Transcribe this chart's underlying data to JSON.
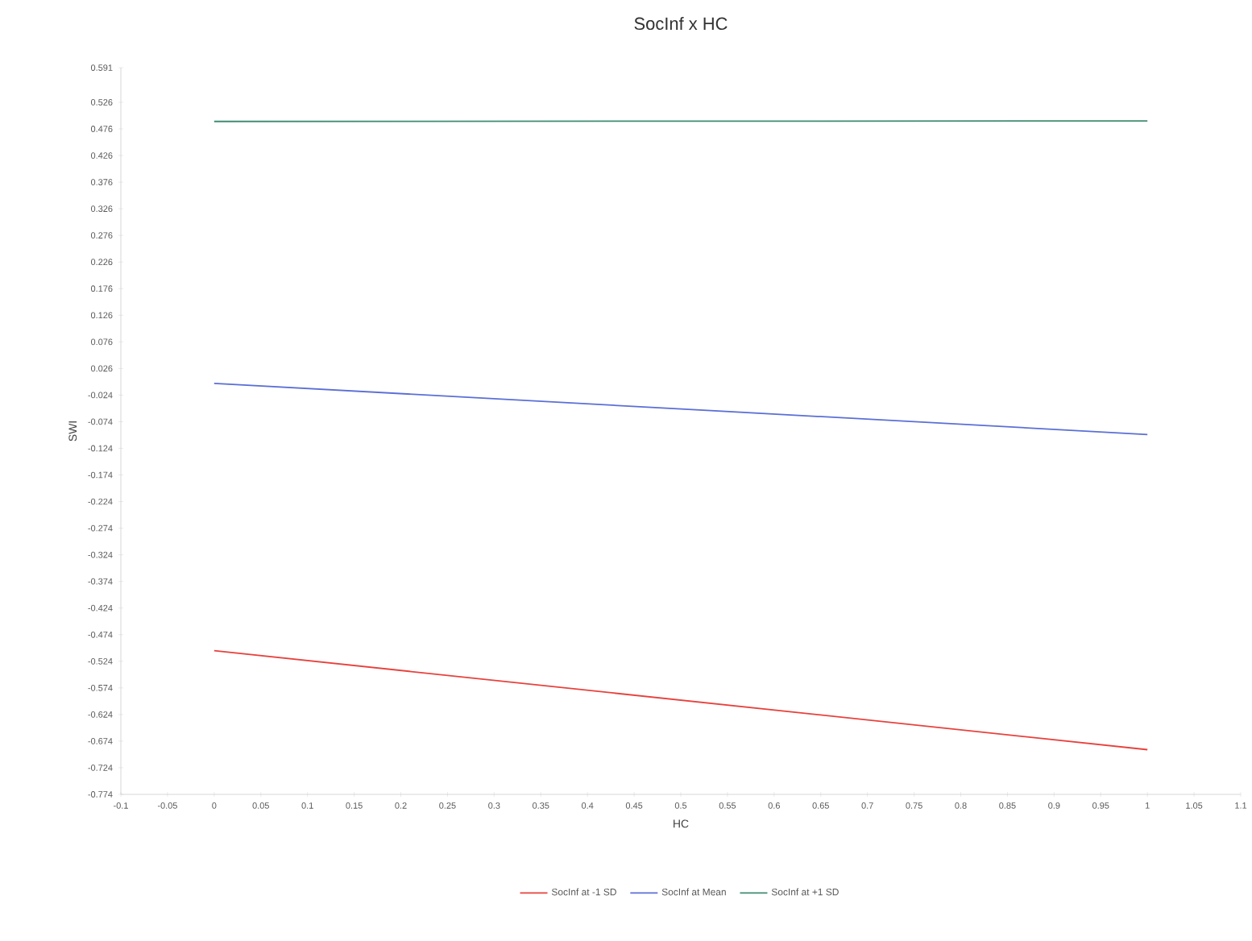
{
  "chart_data": {
    "type": "line",
    "title": "SocInf x HC",
    "xlabel": "HC",
    "ylabel": "SWI",
    "x": [
      0,
      1
    ],
    "xlim": [
      -0.1,
      1.1
    ],
    "xticks": [
      -0.1,
      -0.05,
      0,
      0.05,
      0.1,
      0.15,
      0.2,
      0.25,
      0.3,
      0.35,
      0.4,
      0.45,
      0.5,
      0.55,
      0.6,
      0.65,
      0.7,
      0.75,
      0.8,
      0.85,
      0.9,
      0.95,
      1,
      1.05,
      1.1
    ],
    "ylim": [
      -0.774,
      0.591
    ],
    "yticks": [
      -0.774,
      -0.724,
      -0.674,
      -0.624,
      -0.574,
      -0.524,
      -0.474,
      -0.424,
      -0.374,
      -0.324,
      -0.274,
      -0.224,
      -0.174,
      -0.124,
      -0.074,
      -0.024,
      0.026,
      0.076,
      0.126,
      0.176,
      0.226,
      0.276,
      0.326,
      0.376,
      0.426,
      0.476,
      0.526,
      0.591
    ],
    "grid": false,
    "legend": "bottom",
    "marker": "none",
    "line_style": "solid",
    "series": [
      {
        "name": "SocInf at -1 SD",
        "color": "#e8413c",
        "values": [
          -0.504,
          -0.69
        ]
      },
      {
        "name": "SocInf at Mean",
        "color": "#5b6fd6",
        "values": [
          -0.002,
          -0.098
        ]
      },
      {
        "name": "SocInf at +1 SD",
        "color": "#3e8c6f",
        "values": [
          0.49,
          0.491
        ]
      }
    ]
  }
}
